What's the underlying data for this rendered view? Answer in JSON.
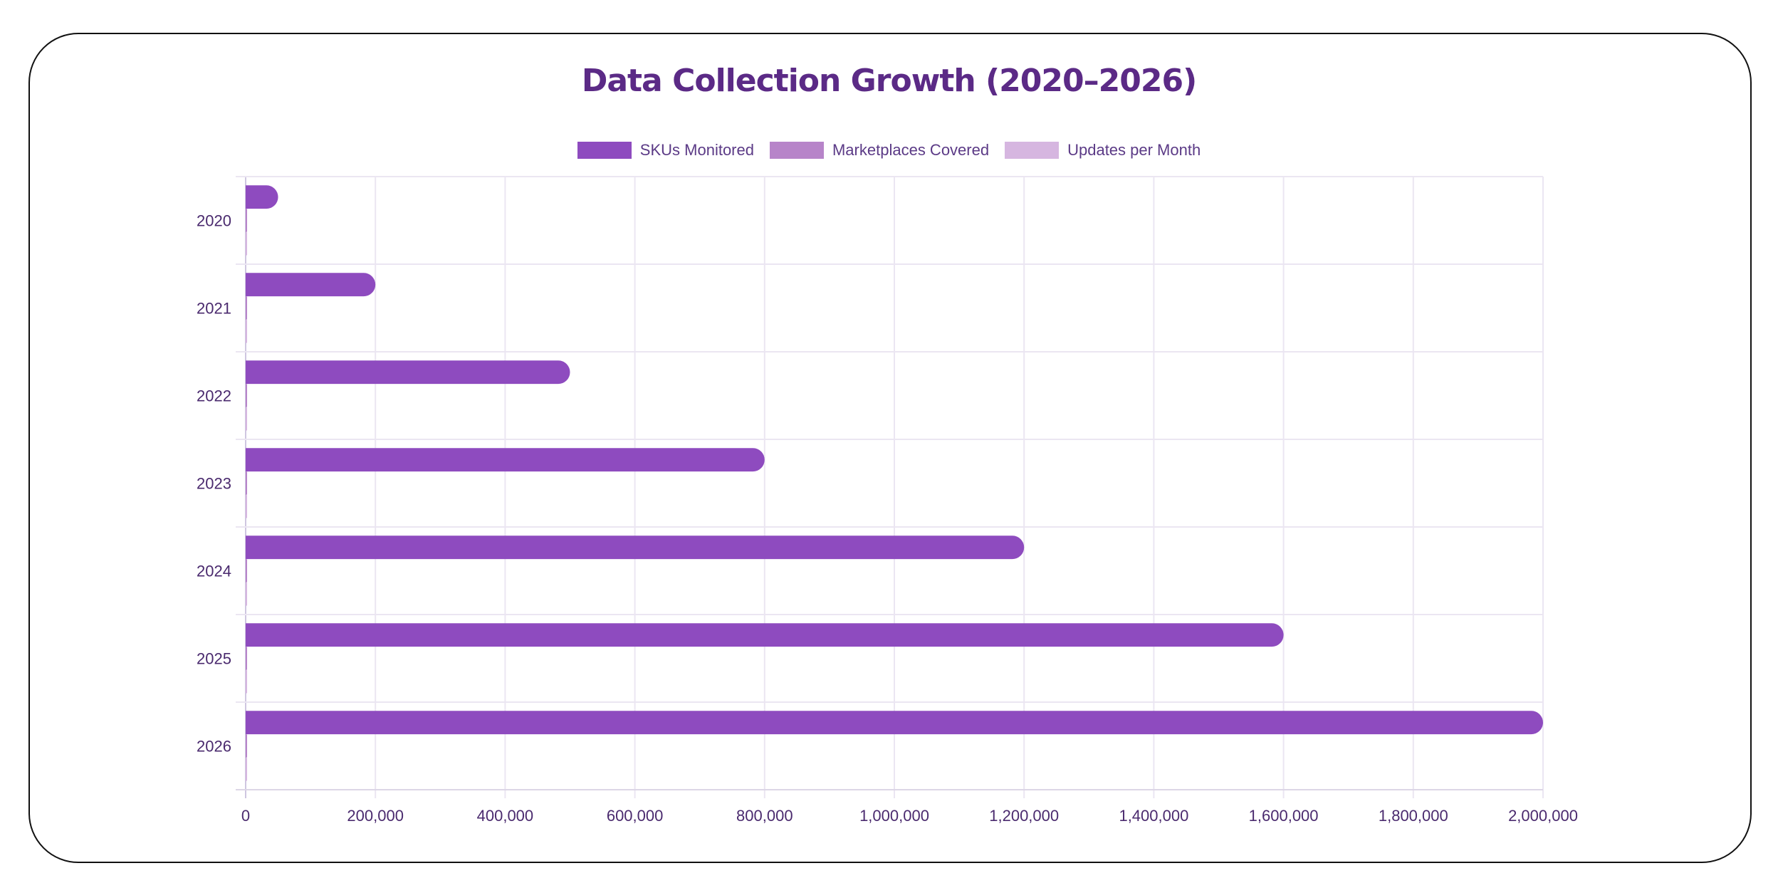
{
  "chart_data": {
    "type": "bar",
    "orientation": "horizontal",
    "title": "Data Collection Growth (2020–2026)",
    "categories": [
      "2020",
      "2021",
      "2022",
      "2023",
      "2024",
      "2025",
      "2026"
    ],
    "series": [
      {
        "name": "SKUs Monitored",
        "color": "#8e4bbf",
        "values": [
          50000,
          200000,
          500000,
          800000,
          1200000,
          1600000,
          2000000
        ]
      },
      {
        "name": "Marketplaces Covered",
        "color": "#b784c9",
        "values": [
          5,
          10,
          20,
          35,
          50,
          75,
          100
        ]
      },
      {
        "name": "Updates per Month",
        "color": "#d6b6e0",
        "values": [
          4,
          8,
          15,
          30,
          60,
          120,
          240
        ]
      }
    ],
    "xlim": [
      0,
      2000000
    ],
    "x_ticks": [
      "0",
      "200,000",
      "400,000",
      "600,000",
      "800,000",
      "1,000,000",
      "1,200,000",
      "1,400,000",
      "1,600,000",
      "1,800,000",
      "2,000,000"
    ],
    "x_tick_values": [
      0,
      200000,
      400000,
      600000,
      800000,
      1000000,
      1200000,
      1400000,
      1600000,
      1800000,
      2000000
    ],
    "xlabel": "",
    "ylabel": "",
    "grid": true,
    "legend_position": "top"
  }
}
